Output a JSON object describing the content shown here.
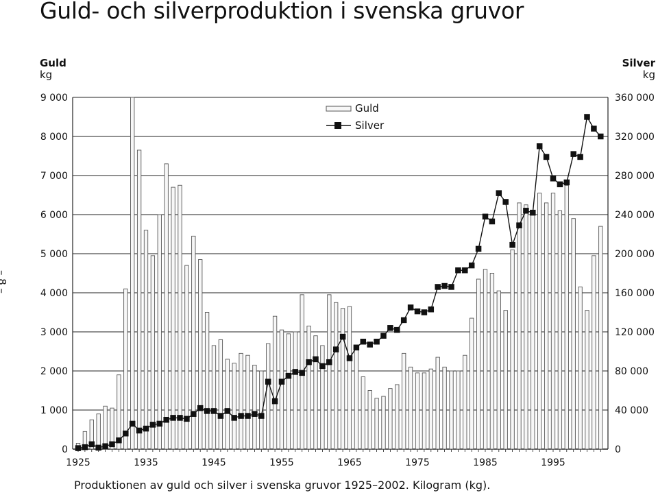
{
  "title": "Guld- och silverproduktion i svenska gruvor",
  "side_marker": "– 8 –",
  "left_axis": {
    "label": "Guld",
    "unit": "kg"
  },
  "right_axis": {
    "label": "Silver",
    "unit": "kg"
  },
  "caption": "Produktionen av guld och silver i svenska gruvor 1925–2002. Kilogram (kg).",
  "chart_data": {
    "type": "bar",
    "x": [
      1925,
      1926,
      1927,
      1928,
      1929,
      1930,
      1931,
      1932,
      1933,
      1934,
      1935,
      1936,
      1937,
      1938,
      1939,
      1940,
      1941,
      1942,
      1943,
      1944,
      1945,
      1946,
      1947,
      1948,
      1949,
      1950,
      1951,
      1952,
      1953,
      1954,
      1955,
      1956,
      1957,
      1958,
      1959,
      1960,
      1961,
      1962,
      1963,
      1964,
      1965,
      1966,
      1967,
      1968,
      1969,
      1970,
      1971,
      1972,
      1973,
      1974,
      1975,
      1976,
      1977,
      1978,
      1979,
      1980,
      1981,
      1982,
      1983,
      1984,
      1985,
      1986,
      1987,
      1988,
      1989,
      1990,
      1991,
      1992,
      1993,
      1994,
      1995,
      1996,
      1997,
      1998,
      1999,
      2000,
      2001,
      2002
    ],
    "series": [
      {
        "name": "Guld",
        "kind": "bar",
        "axis": "left",
        "values": [
          150,
          450,
          750,
          900,
          1100,
          1050,
          1900,
          4100,
          9000,
          7650,
          5600,
          4950,
          6000,
          7300,
          6700,
          6750,
          4700,
          5450,
          4850,
          3500,
          2650,
          2800,
          2300,
          2200,
          2450,
          2400,
          2150,
          2000,
          2700,
          3400,
          3050,
          2950,
          3000,
          3950,
          3150,
          2900,
          2650,
          3950,
          3750,
          3600,
          3650,
          2600,
          1850,
          1500,
          1300,
          1350,
          1550,
          1650,
          2450,
          2100,
          1950,
          1950,
          2050,
          2350,
          2100,
          2000,
          2000,
          2400,
          3350,
          4350,
          4600,
          4500,
          4050,
          3550,
          5100,
          6300,
          6250,
          6050,
          6550,
          6300,
          6550,
          6100,
          6750,
          5900,
          4150,
          3550,
          4950,
          5700
        ]
      },
      {
        "name": "Silver",
        "kind": "line",
        "axis": "right",
        "values": [
          1000,
          2000,
          5000,
          1500,
          3000,
          5000,
          9000,
          16000,
          26000,
          19000,
          21000,
          25000,
          26000,
          30000,
          32000,
          32000,
          31000,
          36000,
          42000,
          39000,
          39000,
          34000,
          39000,
          32000,
          34000,
          34000,
          36000,
          34000,
          69000,
          49000,
          69000,
          75000,
          79000,
          78000,
          89000,
          92000,
          85000,
          89000,
          102000,
          115000,
          93000,
          104000,
          110000,
          107000,
          110000,
          116000,
          124000,
          122000,
          132000,
          145000,
          141000,
          140000,
          143000,
          166000,
          167000,
          166000,
          183000,
          183000,
          188000,
          205000,
          238000,
          233000,
          262000,
          253000,
          209000,
          229000,
          244000,
          242000,
          310000,
          299000,
          277000,
          271000,
          273000,
          302000,
          299000,
          340000,
          328000,
          320000
        ]
      }
    ],
    "x_tick_labels": [
      "1925",
      "1935",
      "1945",
      "1955",
      "1965",
      "1975",
      "1985",
      "1995"
    ],
    "left_tick_labels": [
      "0",
      "1 000",
      "2 000",
      "3 000",
      "4 000",
      "5 000",
      "6 000",
      "7 000",
      "8 000",
      "9 000"
    ],
    "right_tick_labels": [
      "0",
      "40 000",
      "80 000",
      "120 000",
      "160 000",
      "200 000",
      "240 000",
      "280 000",
      "320 000",
      "360 000"
    ],
    "ylim_left": [
      0,
      9000
    ],
    "ylim_right": [
      0,
      360000
    ],
    "xlim": [
      1925,
      2002
    ],
    "grid": "horizontal",
    "legend_position": "top-right",
    "colors": {
      "bar_fill": "#f7f7f7",
      "bar_stroke": "#555555",
      "line": "#111111",
      "marker": "#111111",
      "grid": "#222222"
    }
  }
}
